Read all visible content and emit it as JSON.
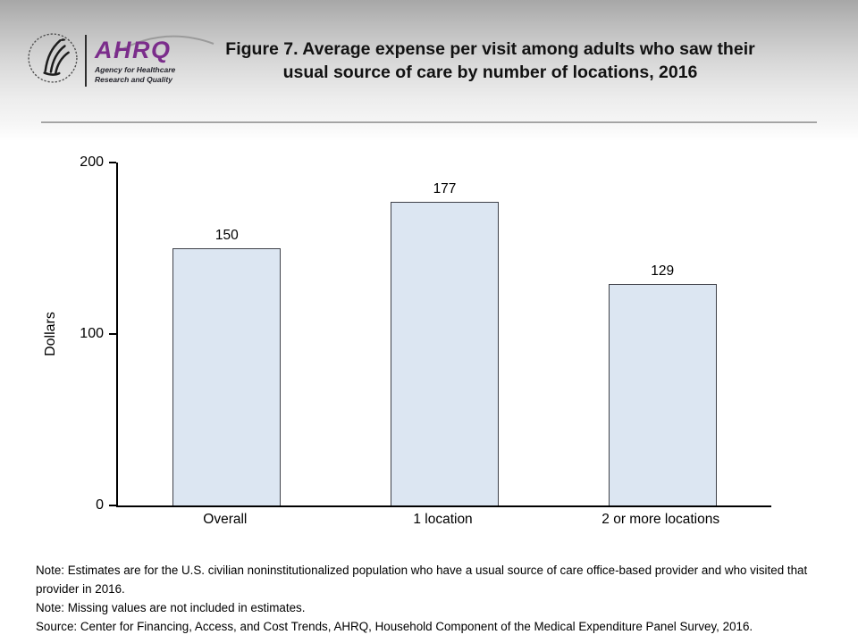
{
  "header": {
    "logo": {
      "brand": "AHRQ",
      "tagline_line1": "Agency for Healthcare",
      "tagline_line2": "Research and Quality",
      "brand_color": "#7b2d8b"
    },
    "title_line1": "Figure 7. Average expense per visit among adults who saw their",
    "title_line2": "usual source of care by number of locations, 2016"
  },
  "chart_data": {
    "type": "bar",
    "categories": [
      "Overall",
      "1 location",
      "2 or more locations"
    ],
    "values": [
      150,
      177,
      129
    ],
    "value_labels": [
      "150",
      "177",
      "129"
    ],
    "title": "Figure 7. Average expense per visit among adults who saw their usual source of care by number of locations, 2016",
    "xlabel": "",
    "ylabel": "Dollars",
    "ylim": [
      0,
      200
    ],
    "yticks": [
      0,
      100,
      200
    ],
    "grid": false,
    "legend": false,
    "bar_fill": "#dce6f2",
    "bar_border": "#3f4149",
    "axis_color": "#000000"
  },
  "notes": [
    "Note: Estimates are for the U.S. civilian noninstitutionalized population who have a usual source of care office-based provider and who visited that provider in 2016.",
    "Note: Missing values are not included in estimates.",
    "Source: Center for Financing, Access, and Cost Trends, AHRQ, Household Component of the Medical Expenditure Panel Survey, 2016."
  ]
}
